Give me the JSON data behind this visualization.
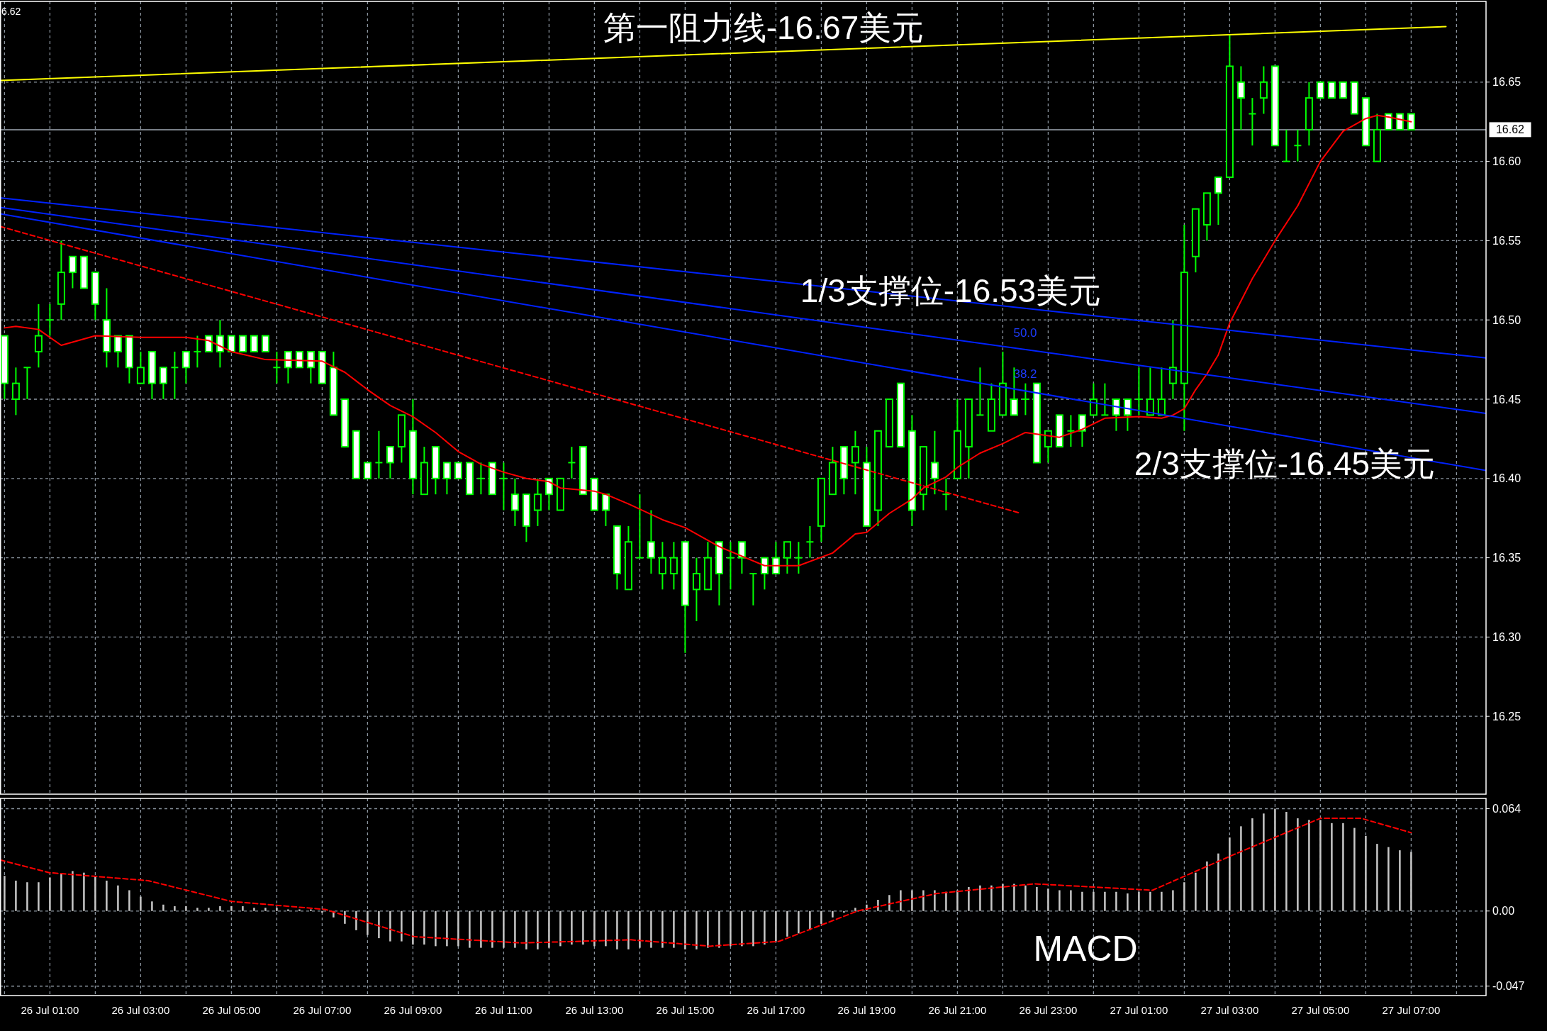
{
  "chart_data": [
    {
      "type": "candlestick",
      "color": "#00ff00",
      "x": [
        "--07-26T00:00",
        "--07-26T00:15",
        "--07-26T00:30",
        "--07-26T00:45",
        "--07-26T01:00",
        "--07-26T01:15",
        "--07-26T01:30",
        "--07-26T01:45",
        "--07-26T02:00",
        "--07-26T02:15",
        "--07-26T02:30",
        "--07-26T02:45",
        "--07-26T03:00",
        "--07-26T03:15",
        "--07-26T03:30",
        "--07-26T03:45",
        "--07-26T04:00",
        "--07-26T04:15",
        "--07-26T04:30",
        "--07-26T04:45",
        "--07-26T05:00",
        "--07-26T05:15",
        "--07-26T05:30",
        "--07-26T05:45",
        "--07-26T06:00",
        "--07-26T06:15",
        "--07-26T06:30",
        "--07-26T06:45",
        "--07-26T07:00",
        "--07-26T07:15",
        "--07-26T07:30",
        "--07-26T07:45",
        "--07-26T08:00",
        "--07-26T08:15",
        "--07-26T08:30",
        "--07-26T08:45",
        "--07-26T09:00",
        "--07-26T09:15",
        "--07-26T09:30",
        "--07-26T09:45",
        "--07-26T10:00",
        "--07-26T10:15",
        "--07-26T10:30",
        "--07-26T10:45",
        "--07-26T11:00",
        "--07-26T11:15",
        "--07-26T11:30",
        "--07-26T11:45",
        "--07-26T12:00",
        "--07-26T12:15",
        "--07-26T12:30",
        "--07-26T12:45",
        "--07-26T13:00",
        "--07-26T13:15",
        "--07-26T13:30",
        "--07-26T13:45",
        "--07-26T14:00",
        "--07-26T14:15",
        "--07-26T14:30",
        "--07-26T14:45",
        "--07-26T15:00",
        "--07-26T15:15",
        "--07-26T15:30",
        "--07-26T15:45",
        "--07-26T16:00",
        "--07-26T16:15",
        "--07-26T16:30",
        "--07-26T16:45",
        "--07-26T17:00",
        "--07-26T17:15",
        "--07-26T17:30",
        "--07-26T17:45",
        "--07-26T18:00",
        "--07-26T18:15",
        "--07-26T18:30",
        "--07-26T18:45",
        "--07-26T19:00",
        "--07-26T19:15",
        "--07-26T19:30",
        "--07-26T19:45",
        "--07-26T20:00",
        "--07-26T20:15",
        "--07-26T20:30",
        "--07-26T20:45",
        "--07-26T21:00",
        "--07-26T21:15",
        "--07-26T21:30",
        "--07-26T21:45",
        "--07-26T22:00",
        "--07-26T22:15",
        "--07-26T22:30",
        "--07-26T22:45",
        "--07-26T23:00",
        "--07-26T23:15",
        "--07-26T23:30",
        "--07-26T23:45",
        "--07-27T00:00",
        "--07-27T00:15",
        "--07-27T00:30",
        "--07-27T00:45",
        "--07-27T01:00",
        "--07-27T01:15",
        "--07-27T01:30",
        "--07-27T01:45",
        "--07-27T02:00",
        "--07-27T02:15",
        "--07-27T02:30",
        "--07-27T02:45",
        "--07-27T03:00",
        "--07-27T03:15",
        "--07-27T03:30",
        "--07-27T03:45",
        "--07-27T04:00",
        "--07-27T04:15",
        "--07-27T04:30",
        "--07-27T04:45",
        "--07-27T05:00",
        "--07-27T05:15",
        "--07-27T05:30",
        "--07-27T05:45",
        "--07-27T06:00",
        "--07-27T06:15",
        "--07-27T06:30",
        "--07-27T06:45",
        "--07-27T07:00"
      ],
      "ohlc": [
        [
          16.49,
          16.49,
          16.45,
          16.46
        ],
        [
          16.45,
          16.47,
          16.44,
          16.46
        ],
        [
          16.47,
          16.47,
          16.45,
          16.47
        ],
        [
          16.48,
          16.51,
          16.47,
          16.49
        ],
        [
          16.5,
          16.51,
          16.49,
          16.5
        ],
        [
          16.51,
          16.55,
          16.5,
          16.53
        ],
        [
          16.54,
          16.54,
          16.52,
          16.53
        ],
        [
          16.54,
          16.54,
          16.52,
          16.52
        ],
        [
          16.53,
          16.53,
          16.5,
          16.51
        ],
        [
          16.5,
          16.52,
          16.47,
          16.48
        ],
        [
          16.49,
          16.49,
          16.47,
          16.48
        ],
        [
          16.49,
          16.49,
          16.46,
          16.47
        ],
        [
          16.46,
          16.48,
          16.46,
          16.47
        ],
        [
          16.48,
          16.48,
          16.45,
          16.46
        ],
        [
          16.47,
          16.47,
          16.45,
          16.46
        ],
        [
          16.47,
          16.48,
          16.45,
          16.47
        ],
        [
          16.48,
          16.48,
          16.46,
          16.47
        ],
        [
          16.48,
          16.49,
          16.47,
          16.48
        ],
        [
          16.49,
          16.49,
          16.48,
          16.48
        ],
        [
          16.49,
          16.5,
          16.47,
          16.48
        ],
        [
          16.49,
          16.49,
          16.48,
          16.48
        ],
        [
          16.49,
          16.49,
          16.48,
          16.48
        ],
        [
          16.49,
          16.49,
          16.48,
          16.48
        ],
        [
          16.49,
          16.49,
          16.48,
          16.48
        ],
        [
          16.47,
          16.48,
          16.46,
          16.47
        ],
        [
          16.48,
          16.48,
          16.46,
          16.47
        ],
        [
          16.48,
          16.48,
          16.47,
          16.47
        ],
        [
          16.48,
          16.48,
          16.46,
          16.47
        ],
        [
          16.48,
          16.48,
          16.46,
          16.46
        ],
        [
          16.47,
          16.48,
          16.44,
          16.44
        ],
        [
          16.45,
          16.45,
          16.42,
          16.42
        ],
        [
          16.43,
          16.43,
          16.4,
          16.4
        ],
        [
          16.41,
          16.41,
          16.4,
          16.4
        ],
        [
          16.41,
          16.43,
          16.4,
          16.41
        ],
        [
          16.42,
          16.42,
          16.4,
          16.41
        ],
        [
          16.42,
          16.44,
          16.41,
          16.44
        ],
        [
          16.43,
          16.45,
          16.39,
          16.4
        ],
        [
          16.39,
          16.42,
          16.39,
          16.41
        ],
        [
          16.42,
          16.42,
          16.39,
          16.4
        ],
        [
          16.41,
          16.41,
          16.39,
          16.4
        ],
        [
          16.41,
          16.41,
          16.4,
          16.4
        ],
        [
          16.41,
          16.41,
          16.39,
          16.39
        ],
        [
          16.4,
          16.41,
          16.39,
          16.4
        ],
        [
          16.41,
          16.41,
          16.39,
          16.39
        ],
        [
          16.4,
          16.41,
          16.38,
          16.4
        ],
        [
          16.39,
          16.4,
          16.37,
          16.38
        ],
        [
          16.39,
          16.39,
          16.36,
          16.37
        ],
        [
          16.38,
          16.4,
          16.37,
          16.39
        ],
        [
          16.4,
          16.4,
          16.38,
          16.39
        ],
        [
          16.38,
          16.4,
          16.38,
          16.4
        ],
        [
          16.41,
          16.42,
          16.4,
          16.41
        ],
        [
          16.42,
          16.42,
          16.39,
          16.39
        ],
        [
          16.4,
          16.4,
          16.38,
          16.38
        ],
        [
          16.39,
          16.39,
          16.37,
          16.38
        ],
        [
          16.37,
          16.37,
          16.33,
          16.34
        ],
        [
          16.33,
          16.37,
          16.33,
          16.36
        ],
        [
          16.35,
          16.39,
          16.35,
          16.35
        ],
        [
          16.36,
          16.38,
          16.34,
          16.35
        ],
        [
          16.34,
          16.36,
          16.33,
          16.35
        ],
        [
          16.34,
          16.36,
          16.33,
          16.35
        ],
        [
          16.36,
          16.36,
          16.29,
          16.32
        ],
        [
          16.33,
          16.35,
          16.31,
          16.34
        ],
        [
          16.33,
          16.36,
          16.33,
          16.35
        ],
        [
          16.36,
          16.36,
          16.32,
          16.34
        ],
        [
          16.35,
          16.36,
          16.33,
          16.35
        ],
        [
          16.36,
          16.36,
          16.34,
          16.35
        ],
        [
          16.34,
          16.34,
          16.32,
          16.34
        ],
        [
          16.35,
          16.35,
          16.33,
          16.34
        ],
        [
          16.35,
          16.36,
          16.34,
          16.34
        ],
        [
          16.35,
          16.36,
          16.34,
          16.36
        ],
        [
          16.35,
          16.36,
          16.34,
          16.35
        ],
        [
          16.36,
          16.37,
          16.35,
          16.36
        ],
        [
          16.37,
          16.4,
          16.36,
          16.4
        ],
        [
          16.39,
          16.42,
          16.39,
          16.41
        ],
        [
          16.42,
          16.42,
          16.39,
          16.4
        ],
        [
          16.41,
          16.43,
          16.39,
          16.42
        ],
        [
          16.41,
          16.42,
          16.37,
          16.37
        ],
        [
          16.38,
          16.43,
          16.37,
          16.43
        ],
        [
          16.42,
          16.45,
          16.42,
          16.45
        ],
        [
          16.46,
          16.46,
          16.42,
          16.42
        ],
        [
          16.43,
          16.44,
          16.37,
          16.38
        ],
        [
          16.39,
          16.42,
          16.38,
          16.42
        ],
        [
          16.41,
          16.43,
          16.39,
          16.4
        ],
        [
          16.39,
          16.4,
          16.38,
          16.39
        ],
        [
          16.4,
          16.45,
          16.4,
          16.43
        ],
        [
          16.42,
          16.45,
          16.4,
          16.45
        ],
        [
          16.44,
          16.47,
          16.44,
          16.44
        ],
        [
          16.43,
          16.46,
          16.43,
          16.45
        ],
        [
          16.44,
          16.48,
          16.44,
          16.46
        ],
        [
          16.45,
          16.47,
          16.44,
          16.44
        ],
        [
          16.45,
          16.46,
          16.44,
          16.45
        ],
        [
          16.46,
          16.46,
          16.41,
          16.41
        ],
        [
          16.42,
          16.43,
          16.41,
          16.43
        ],
        [
          16.44,
          16.44,
          16.42,
          16.42
        ],
        [
          16.43,
          16.44,
          16.42,
          16.43
        ],
        [
          16.44,
          16.44,
          16.42,
          16.43
        ],
        [
          16.44,
          16.46,
          16.44,
          16.45
        ],
        [
          16.44,
          16.46,
          16.44,
          16.44
        ],
        [
          16.45,
          16.45,
          16.43,
          16.44
        ],
        [
          16.45,
          16.45,
          16.43,
          16.44
        ],
        [
          16.45,
          16.47,
          16.44,
          16.45
        ],
        [
          16.44,
          16.47,
          16.44,
          16.45
        ],
        [
          16.44,
          16.47,
          16.44,
          16.45
        ],
        [
          16.46,
          16.5,
          16.45,
          16.47
        ],
        [
          16.46,
          16.56,
          16.43,
          16.53
        ],
        [
          16.54,
          16.57,
          16.53,
          16.57
        ],
        [
          16.56,
          16.58,
          16.55,
          16.58
        ],
        [
          16.59,
          16.59,
          16.56,
          16.58
        ],
        [
          16.59,
          16.68,
          16.59,
          16.66
        ],
        [
          16.65,
          16.66,
          16.62,
          16.64
        ],
        [
          16.63,
          16.64,
          16.61,
          16.63
        ],
        [
          16.64,
          16.66,
          16.63,
          16.65
        ],
        [
          16.66,
          16.66,
          16.61,
          16.61
        ],
        [
          16.6,
          16.62,
          16.6,
          16.6
        ],
        [
          16.61,
          16.62,
          16.6,
          16.61
        ],
        [
          16.62,
          16.65,
          16.61,
          16.64
        ],
        [
          16.65,
          16.65,
          16.64,
          16.64
        ],
        [
          16.65,
          16.65,
          16.64,
          16.64
        ],
        [
          16.65,
          16.65,
          16.64,
          16.64
        ],
        [
          16.65,
          16.65,
          16.63,
          16.63
        ],
        [
          16.64,
          16.64,
          16.61,
          16.61
        ],
        [
          16.6,
          16.63,
          16.6,
          16.62
        ],
        [
          16.63,
          16.63,
          16.62,
          16.62
        ],
        [
          16.63,
          16.63,
          16.62,
          16.62
        ],
        [
          16.63,
          16.63,
          16.62,
          16.62
        ]
      ],
      "series": [
        {
          "type": "line",
          "color": "#ff0000",
          "line_style": "solid",
          "x": [
            "--07-26T00:00",
            "--07-26T00:15",
            "--07-26T00:45",
            "--07-26T01:15",
            "--07-26T02:00",
            "--07-26T03:00",
            "--07-26T04:00",
            "--07-26T04:30",
            "--07-26T05:00",
            "--07-26T05:45",
            "--07-26T07:00",
            "--07-26T07:30",
            "--07-26T08:00",
            "--07-26T08:30",
            "--07-26T09:00",
            "--07-26T09:30",
            "--07-26T10:00",
            "--07-26T10:30",
            "--07-26T11:00",
            "--07-26T11:30",
            "--07-26T12:00",
            "--07-26T12:15",
            "--07-26T13:00",
            "--07-26T13:15",
            "--07-26T13:45",
            "--07-26T14:30",
            "--07-26T15:00",
            "--07-26T15:45",
            "--07-26T16:15",
            "--07-26T16:45",
            "--07-26T17:30",
            "--07-26T18:15",
            "--07-26T18:45",
            "--07-26T19:00",
            "--07-26T19:30",
            "--07-26T20:00",
            "--07-26T20:15",
            "--07-26T20:45",
            "--07-26T21:00",
            "--07-26T21:30",
            "--07-26T22:00",
            "--07-26T22:30",
            "--07-26T23:15",
            "--07-26T23:45",
            "--07-27T00:15",
            "--07-27T01:00",
            "--07-27T01:30",
            "--07-27T01:45",
            "--07-27T02:00",
            "--07-27T02:15",
            "--07-27T02:30",
            "--07-27T02:45",
            "--07-27T03:00",
            "--07-27T03:30",
            "--07-27T04:00",
            "--07-27T04:30",
            "--07-27T05:00",
            "--07-27T05:30",
            "--07-27T06:00",
            "--07-27T06:15",
            "--07-27T06:30",
            "--07-27T07:00"
          ],
          "values": [
            16.495,
            16.496,
            16.494,
            16.484,
            16.49,
            16.489,
            16.489,
            16.487,
            16.48,
            16.475,
            16.474,
            16.467,
            16.456,
            16.446,
            16.439,
            16.429,
            16.417,
            16.409,
            16.404,
            16.4,
            16.398,
            16.394,
            16.392,
            16.39,
            16.384,
            16.374,
            16.369,
            16.357,
            16.351,
            16.345,
            16.345,
            16.353,
            16.365,
            16.366,
            16.378,
            16.387,
            16.394,
            16.401,
            16.407,
            16.416,
            16.422,
            16.429,
            16.426,
            16.431,
            16.438,
            16.439,
            16.438,
            16.44,
            16.444,
            16.456,
            16.466,
            16.478,
            16.498,
            16.526,
            16.55,
            16.572,
            16.6,
            16.619,
            16.627,
            16.629,
            16.628,
            16.625
          ]
        },
        {
          "type": "line",
          "color": "#ff0000",
          "line_style": "dashed",
          "x": [
            "--07-25T23:54",
            "--07-26T22:24"
          ],
          "values": [
            16.559,
            16.378
          ]
        },
        {
          "type": "line",
          "color": "#0022ff",
          "line_style": "solid",
          "x": [
            "--07-25T23:54",
            "--07-27T08:39"
          ],
          "values": [
            16.577,
            16.476
          ]
        },
        {
          "type": "line",
          "color": "#0022ff",
          "line_style": "solid",
          "x": [
            "--07-25T23:54",
            "--07-27T08:39"
          ],
          "values": [
            16.571,
            16.441
          ]
        },
        {
          "type": "line",
          "color": "#0022ff",
          "line_style": "solid",
          "x": [
            "--07-25T23:54",
            "--07-27T08:39"
          ],
          "values": [
            16.567,
            16.405
          ]
        },
        {
          "type": "line",
          "color": "#ffff00",
          "line_style": "solid",
          "x": [
            "--07-25T23:54",
            "--07-27T07:46"
          ],
          "values": [
            16.651,
            16.685
          ]
        }
      ],
      "xlim": [
        "--07-25T23:54",
        "--07-27T08:39"
      ],
      "ylim": [
        16.2,
        16.7
      ],
      "xticks": [
        {
          "value": "--07-26T00:00",
          "label": null
        },
        {
          "value": "--07-26T01:00",
          "label": null
        },
        {
          "value": "--07-26T02:00",
          "label": null
        },
        {
          "value": "--07-26T03:00",
          "label": null
        },
        {
          "value": "--07-26T04:00",
          "label": null
        },
        {
          "value": "--07-26T05:00",
          "label": null
        },
        {
          "value": "--07-26T06:00",
          "label": null
        },
        {
          "value": "--07-26T07:00",
          "label": null
        },
        {
          "value": "--07-26T08:00",
          "label": null
        },
        {
          "value": "--07-26T09:00",
          "label": null
        },
        {
          "value": "--07-26T10:00",
          "label": null
        },
        {
          "value": "--07-26T11:00",
          "label": null
        },
        {
          "value": "--07-26T12:00",
          "label": null
        },
        {
          "value": "--07-26T13:00",
          "label": null
        },
        {
          "value": "--07-26T14:00",
          "label": null
        },
        {
          "value": "--07-26T15:00",
          "label": null
        },
        {
          "value": "--07-26T16:00",
          "label": null
        },
        {
          "value": "--07-26T17:00",
          "label": null
        },
        {
          "value": "--07-26T18:00",
          "label": null
        },
        {
          "value": "--07-26T19:00",
          "label": null
        },
        {
          "value": "--07-26T20:00",
          "label": null
        },
        {
          "value": "--07-26T21:00",
          "label": null
        },
        {
          "value": "--07-26T22:00",
          "label": null
        },
        {
          "value": "--07-26T23:00",
          "label": null
        },
        {
          "value": "--07-27T00:00",
          "label": null
        },
        {
          "value": "--07-27T01:00",
          "label": null
        },
        {
          "value": "--07-27T02:00",
          "label": null
        },
        {
          "value": "--07-27T03:00",
          "label": null
        },
        {
          "value": "--07-27T04:00",
          "label": null
        },
        {
          "value": "--07-27T05:00",
          "label": null
        },
        {
          "value": "--07-27T06:00",
          "label": null
        },
        {
          "value": "--07-27T07:00",
          "label": null
        },
        {
          "value": "--07-27T08:00",
          "label": null
        }
      ],
      "yticks": [
        16.25,
        {
          "value": 16.3,
          "label": "16.30"
        },
        16.35,
        {
          "value": 16.4,
          "label": "16.40"
        },
        16.45,
        {
          "value": 16.5,
          "label": "16.50"
        },
        16.55,
        {
          "value": 16.6,
          "label": "16.60"
        },
        16.65
      ],
      "grid": true,
      "tick_labels": "y",
      "ref_lines": [
        {
          "axis": "y",
          "value": 16.62,
          "label": "16.62",
          "color": "#a0aab4"
        }
      ],
      "annotations": [
        "第一阻力线-16.67美元",
        "1/3支撑位-16.53美元",
        "2/3支撑位-16.45美元",
        "50.0",
        "38.2",
        "6.62"
      ]
    },
    {
      "type": "bar",
      "x": [
        "--07-26T00:00",
        "--07-26T00:15",
        "--07-26T00:30",
        "--07-26T00:45",
        "--07-26T01:00",
        "--07-26T01:15",
        "--07-26T01:30",
        "--07-26T01:45",
        "--07-26T02:00",
        "--07-26T02:15",
        "--07-26T02:30",
        "--07-26T02:45",
        "--07-26T03:00",
        "--07-26T03:15",
        "--07-26T03:30",
        "--07-26T03:45",
        "--07-26T04:00",
        "--07-26T04:15",
        "--07-26T04:30",
        "--07-26T04:45",
        "--07-26T05:00",
        "--07-26T05:15",
        "--07-26T05:30",
        "--07-26T05:45",
        "--07-26T06:00",
        "--07-26T06:15",
        "--07-26T06:30",
        "--07-26T06:45",
        "--07-26T07:00",
        "--07-26T07:15",
        "--07-26T07:30",
        "--07-26T07:45",
        "--07-26T08:00",
        "--07-26T08:15",
        "--07-26T08:30",
        "--07-26T08:45",
        "--07-26T09:00",
        "--07-26T09:15",
        "--07-26T09:30",
        "--07-26T09:45",
        "--07-26T10:00",
        "--07-26T10:15",
        "--07-26T10:30",
        "--07-26T10:45",
        "--07-26T11:00",
        "--07-26T11:15",
        "--07-26T11:30",
        "--07-26T11:45",
        "--07-26T12:00",
        "--07-26T12:15",
        "--07-26T12:30",
        "--07-26T12:45",
        "--07-26T13:00",
        "--07-26T13:15",
        "--07-26T13:30",
        "--07-26T13:45",
        "--07-26T14:00",
        "--07-26T14:15",
        "--07-26T14:30",
        "--07-26T14:45",
        "--07-26T15:00",
        "--07-26T15:15",
        "--07-26T15:30",
        "--07-26T15:45",
        "--07-26T16:00",
        "--07-26T16:15",
        "--07-26T16:30",
        "--07-26T16:45",
        "--07-26T17:00",
        "--07-26T17:15",
        "--07-26T17:30",
        "--07-26T17:45",
        "--07-26T18:00",
        "--07-26T18:15",
        "--07-26T18:30",
        "--07-26T18:45",
        "--07-26T19:00",
        "--07-26T19:15",
        "--07-26T19:30",
        "--07-26T19:45",
        "--07-26T20:00",
        "--07-26T20:15",
        "--07-26T20:30",
        "--07-26T20:45",
        "--07-26T21:00",
        "--07-26T21:15",
        "--07-26T21:30",
        "--07-26T21:45",
        "--07-26T22:00",
        "--07-26T22:15",
        "--07-26T22:30",
        "--07-26T22:45",
        "--07-26T23:00",
        "--07-26T23:15",
        "--07-26T23:30",
        "--07-26T23:45",
        "--07-27T00:00",
        "--07-27T00:15",
        "--07-27T00:30",
        "--07-27T00:45",
        "--07-27T01:00",
        "--07-27T01:15",
        "--07-27T01:30",
        "--07-27T01:45",
        "--07-27T02:00",
        "--07-27T02:15",
        "--07-27T02:30",
        "--07-27T02:45",
        "--07-27T03:00",
        "--07-27T03:15",
        "--07-27T03:30",
        "--07-27T03:45",
        "--07-27T04:00",
        "--07-27T04:15",
        "--07-27T04:30",
        "--07-27T04:45",
        "--07-27T05:00",
        "--07-27T05:15",
        "--07-27T05:30",
        "--07-27T05:45",
        "--07-27T06:00",
        "--07-27T06:15",
        "--07-27T06:30",
        "--07-27T06:45",
        "--07-27T07:00"
      ],
      "series": [
        {
          "color": "#c8c8c8",
          "values": [
            0.022,
            0.019,
            0.018,
            0.018,
            0.021,
            0.023,
            0.025,
            0.024,
            0.022,
            0.019,
            0.016,
            0.013,
            0.009,
            0.006,
            0.004,
            0.003,
            0.003,
            0.002,
            0.002,
            0.003,
            0.003,
            0.003,
            0.002,
            0.002,
            0.002,
            0.001,
            0.001,
            0.001,
            -0.001,
            -0.004,
            -0.008,
            -0.012,
            -0.015,
            -0.017,
            -0.019,
            -0.019,
            -0.021,
            -0.021,
            -0.022,
            -0.022,
            -0.022,
            -0.023,
            -0.023,
            -0.023,
            -0.023,
            -0.023,
            -0.024,
            -0.024,
            -0.023,
            -0.022,
            -0.021,
            -0.021,
            -0.022,
            -0.022,
            -0.024,
            -0.024,
            -0.023,
            -0.023,
            -0.023,
            -0.023,
            -0.024,
            -0.024,
            -0.023,
            -0.023,
            -0.022,
            -0.022,
            -0.022,
            -0.021,
            -0.019,
            -0.016,
            -0.014,
            -0.012,
            -0.008,
            -0.004,
            -0.001,
            0.002,
            0.004,
            0.007,
            0.01,
            0.013,
            0.013,
            0.013,
            0.013,
            0.012,
            0.013,
            0.015,
            0.016,
            0.016,
            0.017,
            0.017,
            0.016,
            0.015,
            0.014,
            0.013,
            0.013,
            0.012,
            0.012,
            0.012,
            0.012,
            0.011,
            0.012,
            0.012,
            0.012,
            0.013,
            0.018,
            0.024,
            0.031,
            0.036,
            0.046,
            0.053,
            0.058,
            0.061,
            0.064,
            0.062,
            0.058,
            0.057,
            0.057,
            0.055,
            0.055,
            0.052,
            0.047,
            0.042,
            0.04,
            0.038,
            0.037
          ]
        },
        {
          "type": "line",
          "color": "#ff0000",
          "line_style": "dashed",
          "x": [
            "--07-25T23:54",
            "--07-26T00:59",
            "--07-26T03:10",
            "--07-26T05:00",
            "--07-26T07:04",
            "--07-26T09:01",
            "--07-26T11:24",
            "--07-26T13:48",
            "--07-26T15:33",
            "--07-26T17:04",
            "--07-26T18:48",
            "--07-26T20:33",
            "--07-26T22:42",
            "--07-27T01:18",
            "--07-27T03:04",
            "--07-27T05:00",
            "--07-27T05:54",
            "--07-27T07:00"
          ],
          "values": [
            0.032,
            0.024,
            0.019,
            0.006,
            0.001,
            -0.016,
            -0.02,
            -0.018,
            -0.022,
            -0.019,
            0.0,
            0.011,
            0.017,
            0.013,
            0.035,
            0.058,
            0.058,
            0.049
          ]
        }
      ],
      "xlim": [
        "--07-25T23:54",
        "--07-27T08:39"
      ],
      "ylim": [
        -0.052,
        0.07
      ],
      "xticks": [
        {
          "value": "--07-26T00:00",
          "label": null
        },
        {
          "value": "--07-26T01:00",
          "label": "26 Jul 01:00"
        },
        {
          "value": "--07-26T02:00",
          "label": null
        },
        {
          "value": "--07-26T03:00",
          "label": "26 Jul 03:00"
        },
        {
          "value": "--07-26T04:00",
          "label": null
        },
        {
          "value": "--07-26T05:00",
          "label": "26 Jul 05:00"
        },
        {
          "value": "--07-26T06:00",
          "label": null
        },
        {
          "value": "--07-26T07:00",
          "label": "26 Jul 07:00"
        },
        {
          "value": "--07-26T08:00",
          "label": null
        },
        {
          "value": "--07-26T09:00",
          "label": "26 Jul 09:00"
        },
        {
          "value": "--07-26T10:00",
          "label": null
        },
        {
          "value": "--07-26T11:00",
          "label": "26 Jul 11:00"
        },
        {
          "value": "--07-26T12:00",
          "label": null
        },
        {
          "value": "--07-26T13:00",
          "label": "26 Jul 13:00"
        },
        {
          "value": "--07-26T14:00",
          "label": null
        },
        {
          "value": "--07-26T15:00",
          "label": "26 Jul 15:00"
        },
        {
          "value": "--07-26T16:00",
          "label": null
        },
        {
          "value": "--07-26T17:00",
          "label": "26 Jul 17:00"
        },
        {
          "value": "--07-26T18:00",
          "label": null
        },
        {
          "value": "--07-26T19:00",
          "label": "26 Jul 19:00"
        },
        {
          "value": "--07-26T20:00",
          "label": null
        },
        {
          "value": "--07-26T21:00",
          "label": "26 Jul 21:00"
        },
        {
          "value": "--07-26T22:00",
          "label": null
        },
        {
          "value": "--07-26T23:00",
          "label": "26 Jul 23:00"
        },
        {
          "value": "--07-27T00:00",
          "label": null
        },
        {
          "value": "--07-27T01:00",
          "label": "27 Jul 01:00"
        },
        {
          "value": "--07-27T02:00",
          "label": null
        },
        {
          "value": "--07-27T03:00",
          "label": "27 Jul 03:00"
        },
        {
          "value": "--07-27T04:00",
          "label": null
        },
        {
          "value": "--07-27T05:00",
          "label": "27 Jul 05:00"
        },
        {
          "value": "--07-27T06:00",
          "label": null
        },
        {
          "value": "--07-27T07:00",
          "label": "27 Jul 07:00"
        },
        {
          "value": "--07-27T08:00",
          "label": null
        }
      ],
      "yticks": [
        0.064,
        {
          "value": 0,
          "label": "0.00"
        },
        -0.047
      ],
      "grid": true,
      "annotations": [
        "MACD"
      ]
    }
  ]
}
